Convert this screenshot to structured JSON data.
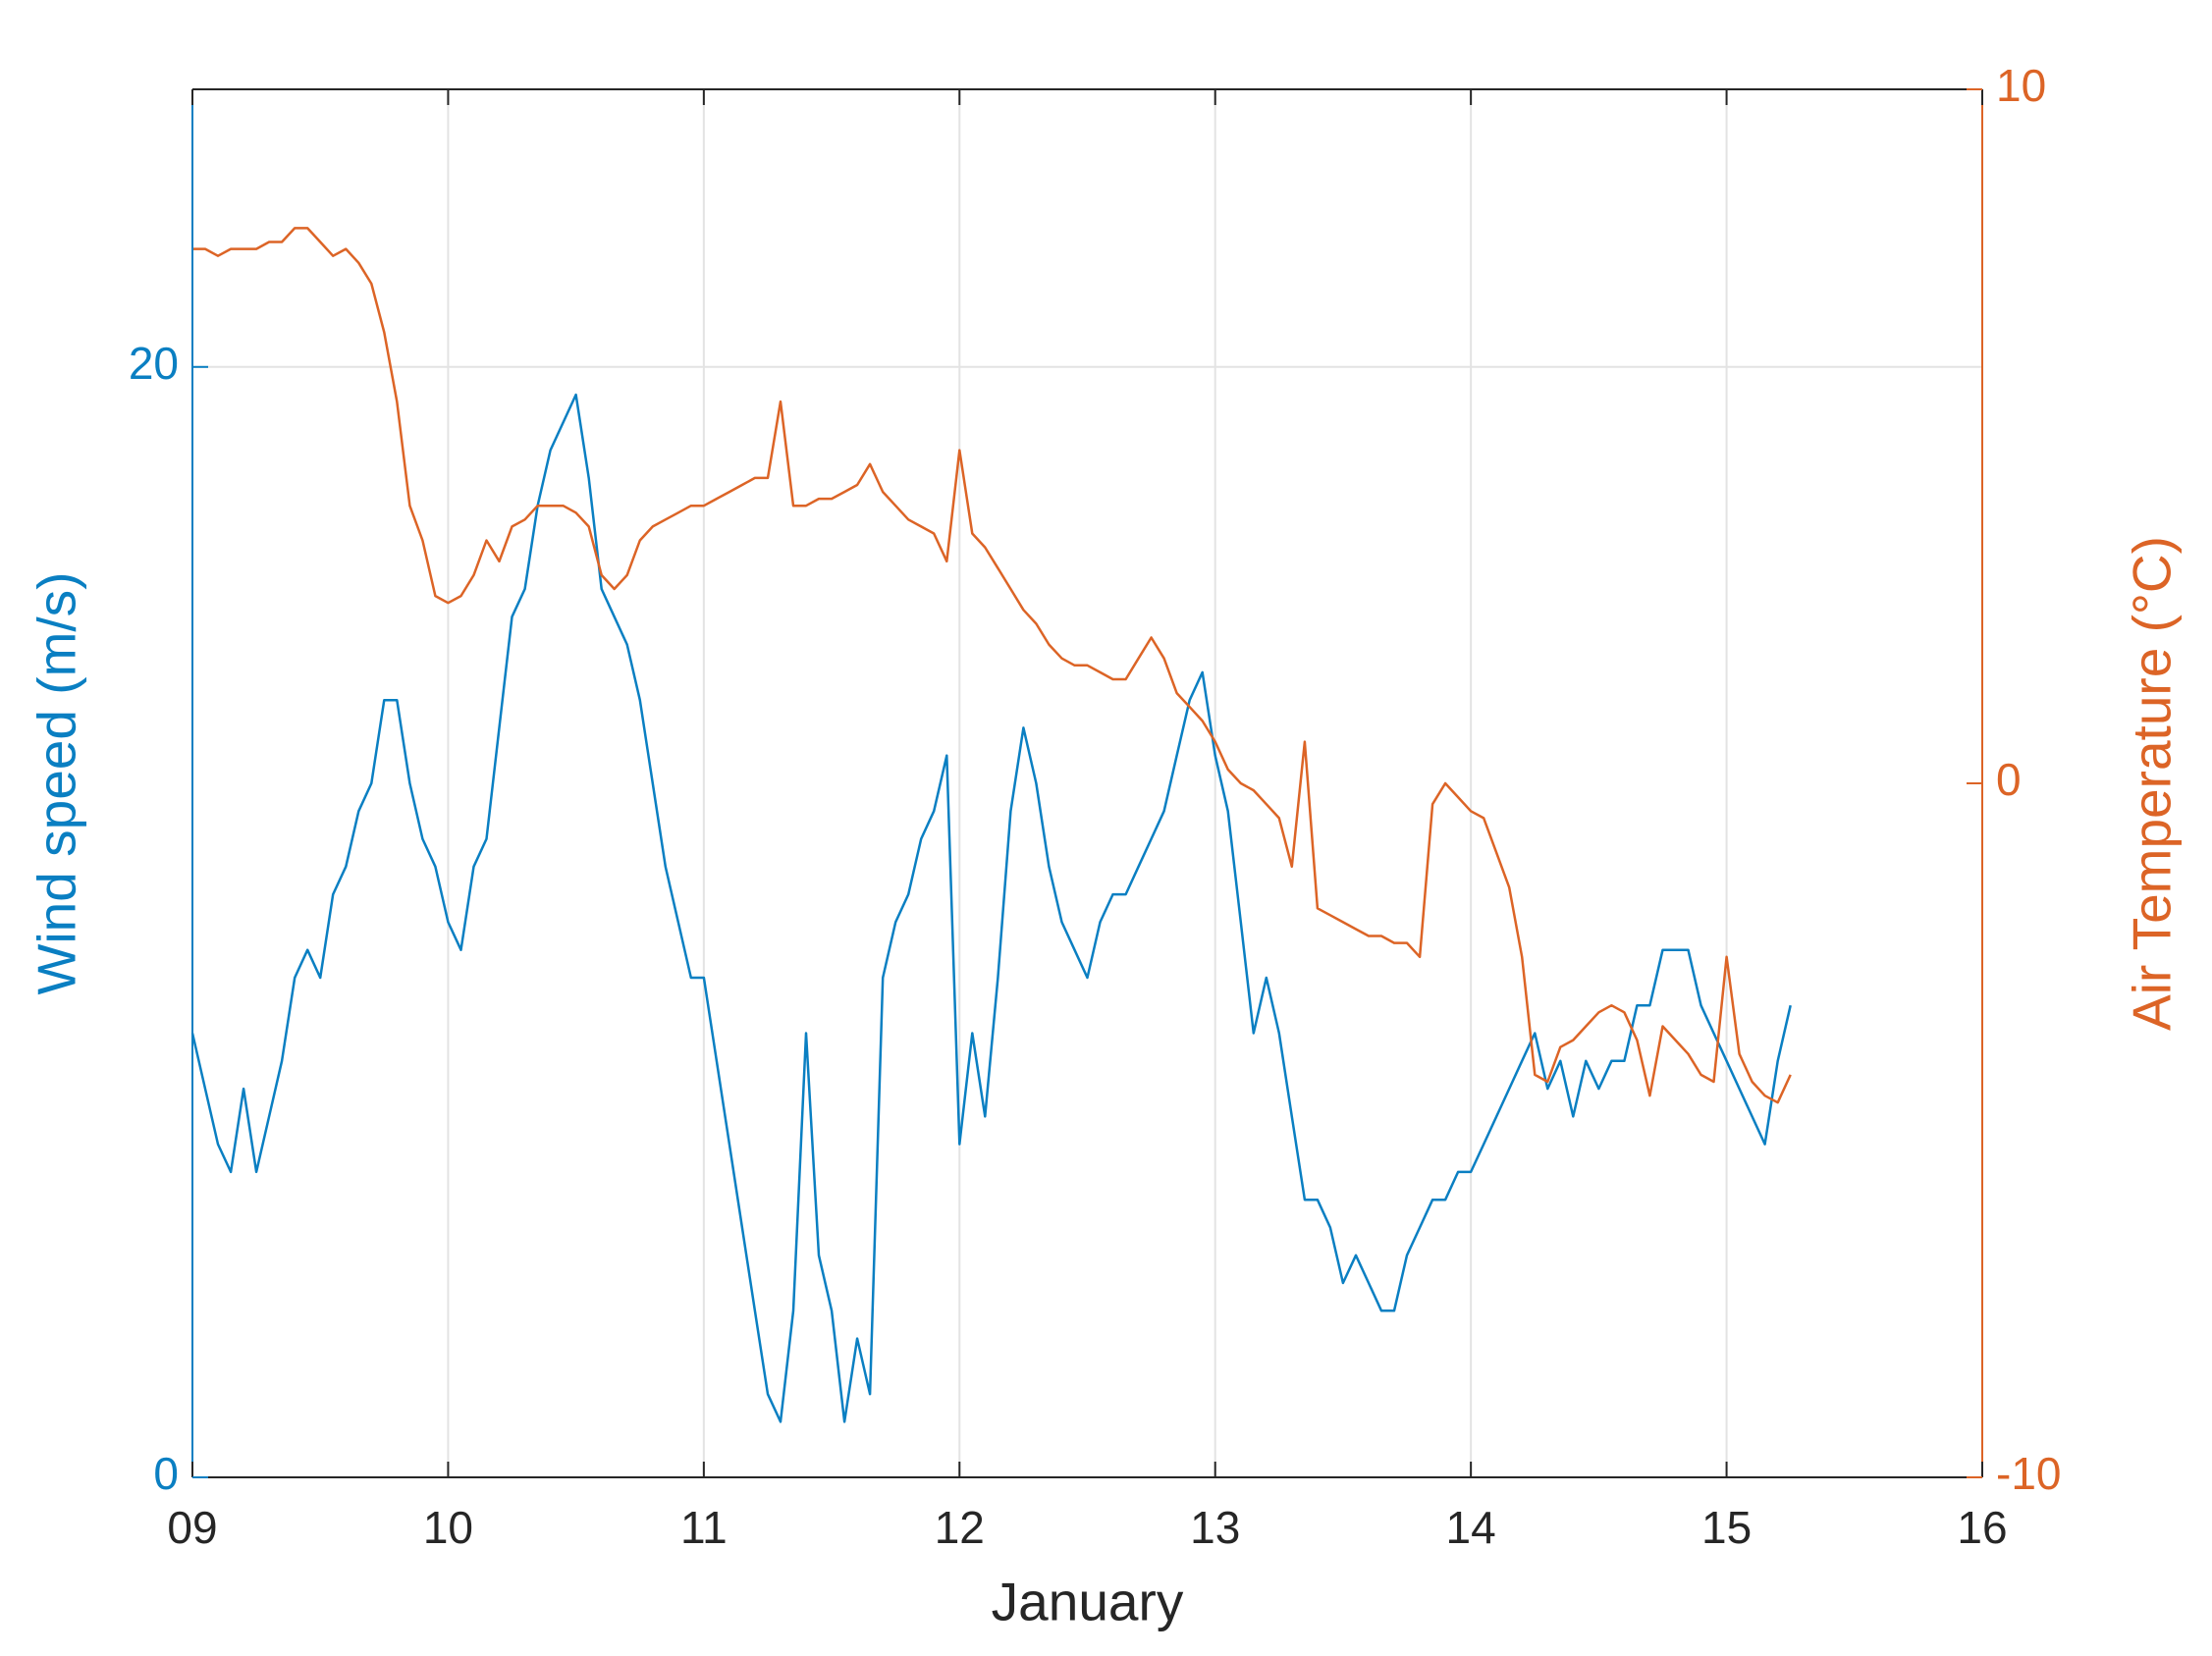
{
  "chart_data": {
    "type": "line",
    "xlabel": "January",
    "ylabel": "Wind speed (m/s)",
    "y2label": "Air Temperature (°C)",
    "xlim": [
      9,
      16
    ],
    "xticks": [
      {
        "value": 9,
        "label": "09"
      },
      {
        "value": 10,
        "label": "10"
      },
      {
        "value": 11,
        "label": "11"
      },
      {
        "value": 12,
        "label": "12"
      },
      {
        "value": 13,
        "label": "13"
      },
      {
        "value": 14,
        "label": "14"
      },
      {
        "value": 15,
        "label": "15"
      },
      {
        "value": 16,
        "label": "16"
      }
    ],
    "ylim": [
      0,
      25
    ],
    "yticks": [
      0,
      20
    ],
    "y2lim": [
      -10,
      10
    ],
    "y2ticks": [
      -10,
      0,
      10
    ],
    "grid": true,
    "x": [
      9,
      9.05,
      9.1,
      9.15,
      9.2,
      9.25,
      9.3,
      9.35,
      9.4,
      9.45,
      9.5,
      9.55,
      9.6,
      9.65,
      9.7,
      9.75,
      9.8,
      9.85,
      9.9,
      9.95,
      10,
      10.05,
      10.1,
      10.15,
      10.2,
      10.25,
      10.3,
      10.35,
      10.4,
      10.45,
      10.5,
      10.55,
      10.6,
      10.65,
      10.7,
      10.75,
      10.8,
      10.85,
      10.9,
      10.95,
      11,
      11.05,
      11.1,
      11.15,
      11.2,
      11.25,
      11.3,
      11.35,
      11.4,
      11.45,
      11.5,
      11.55,
      11.6,
      11.65,
      11.7,
      11.75,
      11.8,
      11.85,
      11.9,
      11.95,
      12,
      12.05,
      12.1,
      12.15,
      12.2,
      12.25,
      12.3,
      12.35,
      12.4,
      12.45,
      12.5,
      12.55,
      12.6,
      12.65,
      12.7,
      12.75,
      12.8,
      12.85,
      12.9,
      12.95,
      13,
      13.05,
      13.1,
      13.15,
      13.2,
      13.25,
      13.3,
      13.35,
      13.4,
      13.45,
      13.5,
      13.55,
      13.6,
      13.65,
      13.7,
      13.75,
      13.8,
      13.85,
      13.9,
      13.95,
      14,
      14.05,
      14.1,
      14.15,
      14.2,
      14.25,
      14.3,
      14.35,
      14.4,
      14.45,
      14.5,
      14.55,
      14.6,
      14.65,
      14.7,
      14.75,
      14.8,
      14.85,
      14.9,
      14.95,
      15,
      15.05,
      15.1,
      15.15,
      15.2,
      15.25
    ],
    "series": [
      {
        "name": "Wind speed (m/s)",
        "color": "#0a7fc2",
        "axis": "y",
        "values": [
          8,
          7,
          6,
          5.5,
          7,
          5.5,
          6.5,
          7.5,
          9,
          9.5,
          9,
          10.5,
          11,
          12,
          12.5,
          14,
          14,
          12.5,
          11.5,
          11,
          10,
          9.5,
          11,
          11.5,
          13.5,
          15.5,
          16,
          17.5,
          18.5,
          19,
          19.5,
          18,
          16,
          15.5,
          15,
          14,
          12.5,
          11,
          10,
          9,
          9,
          7.5,
          6,
          4.5,
          3,
          1.5,
          1,
          3,
          8,
          4,
          3,
          1,
          2.5,
          1.5,
          9,
          10,
          10.5,
          11.5,
          12,
          13,
          6,
          8,
          6.5,
          9,
          12,
          13.5,
          12.5,
          11,
          10,
          9.5,
          9,
          10,
          10.5,
          10.5,
          11,
          11.5,
          12,
          13,
          14,
          14.5,
          13,
          12,
          10,
          8,
          9,
          8,
          6.5,
          5,
          5,
          4.5,
          3.5,
          4,
          3.5,
          3,
          3,
          4,
          4.5,
          5,
          5,
          5.5,
          5.5,
          6,
          6.5,
          7,
          7.5,
          8,
          7,
          7.5,
          6.5,
          7.5,
          7,
          7.5,
          7.5,
          8.5,
          8.5,
          9.5,
          9.5,
          9.5,
          8.5,
          8,
          7.5,
          7,
          6.5,
          6,
          7.5,
          8.5
        ]
      },
      {
        "name": "Air Temperature (°C)",
        "color": "#dc6426",
        "axis": "y2",
        "values": [
          7.7,
          7.7,
          7.6,
          7.7,
          7.7,
          7.7,
          7.8,
          7.8,
          8.0,
          8.0,
          7.8,
          7.6,
          7.7,
          7.5,
          7.2,
          6.5,
          5.5,
          4.0,
          3.5,
          2.7,
          2.6,
          2.7,
          3.0,
          3.5,
          3.2,
          3.7,
          3.8,
          4.0,
          4.0,
          4.0,
          3.9,
          3.7,
          3.0,
          2.8,
          3.0,
          3.5,
          3.7,
          3.8,
          3.9,
          4.0,
          4.0,
          4.1,
          4.2,
          4.3,
          4.4,
          4.4,
          5.5,
          4.0,
          4.0,
          4.1,
          4.1,
          4.2,
          4.3,
          4.6,
          4.2,
          4.0,
          3.8,
          3.7,
          3.6,
          3.2,
          4.8,
          3.6,
          3.4,
          3.1,
          2.8,
          2.5,
          2.3,
          2.0,
          1.8,
          1.7,
          1.7,
          1.6,
          1.5,
          1.5,
          1.8,
          2.1,
          1.8,
          1.3,
          1.1,
          0.9,
          0.6,
          0.2,
          0,
          -0.1,
          -0.3,
          -0.5,
          -1.2,
          0.6,
          -1.8,
          -1.9,
          -2.0,
          -2.1,
          -2.2,
          -2.2,
          -2.3,
          -2.3,
          -2.5,
          -0.3,
          0,
          -0.2,
          -0.4,
          -0.5,
          -1.0,
          -1.5,
          -2.5,
          -4.2,
          -4.3,
          -3.8,
          -3.7,
          -3.5,
          -3.3,
          -3.2,
          -3.3,
          -3.7,
          -4.5,
          -3.5,
          -3.7,
          -3.9,
          -4.2,
          -4.3,
          -2.5,
          -3.9,
          -4.3,
          -4.5,
          -4.6,
          -4.2
        ]
      }
    ]
  }
}
